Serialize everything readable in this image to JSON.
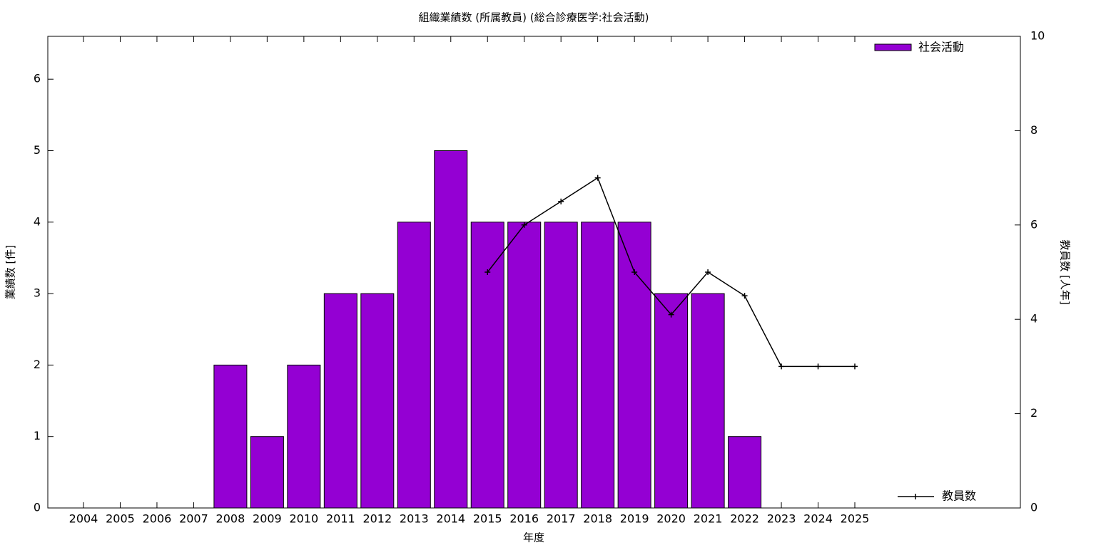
{
  "chart_data": {
    "type": "bar",
    "title": "組織業績数 (所属教員) (総合診療医学:社会活動)",
    "x_label": "年度",
    "y_label": "業績数 [件]",
    "y2_label": "教員数 [人年]",
    "categories": [
      "2004",
      "2005",
      "2006",
      "2007",
      "2008",
      "2009",
      "2010",
      "2011",
      "2012",
      "2013",
      "2014",
      "2015",
      "2016",
      "2017",
      "2018",
      "2019",
      "2020",
      "2021",
      "2022",
      "2023",
      "2024",
      "2025"
    ],
    "series": [
      {
        "name": "社会活動",
        "color": "#9400d3",
        "values": [
          0,
          0,
          0,
          0,
          2,
          1,
          2,
          3,
          3,
          4,
          5,
          4,
          4,
          4,
          4,
          4,
          3,
          3,
          1,
          0,
          0,
          0
        ]
      },
      {
        "name": "教員数",
        "color": "#000000",
        "type": "line",
        "axis": "y2",
        "values": [
          null,
          null,
          null,
          null,
          null,
          null,
          null,
          null,
          null,
          null,
          null,
          5,
          6,
          6.5,
          7,
          5,
          4.1,
          5,
          4.5,
          3,
          3,
          3
        ]
      }
    ],
    "ylim": [
      0,
      6.6
    ],
    "yticks": [
      0,
      1,
      2,
      3,
      4,
      5,
      6
    ],
    "y2lim": [
      0,
      10
    ],
    "y2ticks": [
      0,
      2,
      4,
      6,
      8,
      10
    ]
  }
}
